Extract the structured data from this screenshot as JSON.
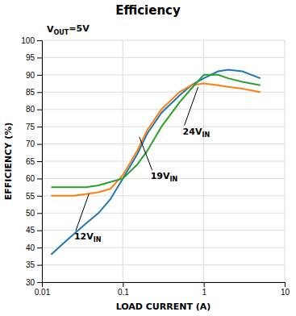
{
  "chart_data": {
    "type": "line",
    "title": "Efficiency",
    "subtitle": {
      "text": "V",
      "subscript": "OUT",
      "suffix": "=5V"
    },
    "xlabel": "LOAD CURRENT (A)",
    "ylabel": "EFFICIENCY (%)",
    "log": "x",
    "x": [
      0.013,
      0.018,
      0.025,
      0.035,
      0.05,
      0.07,
      0.1,
      0.15,
      0.2,
      0.3,
      0.5,
      0.7,
      1.0,
      1.5,
      2.0,
      3.0,
      5.0
    ],
    "series": [
      {
        "values": [
          38,
          41,
          44,
          47,
          50,
          54,
          60,
          67,
          73,
          79,
          84,
          87,
          89,
          91,
          91.5,
          91,
          89
        ]
      },
      {
        "values": [
          55,
          55,
          55,
          55.5,
          56,
          57,
          61,
          68,
          74,
          80,
          85,
          87,
          87.5,
          87,
          86.5,
          86,
          85
        ]
      },
      {
        "values": [
          57.5,
          57.5,
          57.5,
          57.5,
          58,
          59,
          60,
          64,
          68,
          75,
          82,
          86,
          90,
          90,
          89,
          88,
          87
        ]
      }
    ],
    "xlim": [
      0.01,
      10
    ],
    "ylim": [
      30,
      100
    ],
    "xticks": [
      0.01,
      0.1,
      1,
      10
    ],
    "yticks": [
      30,
      35,
      40,
      45,
      50,
      55,
      60,
      65,
      70,
      75,
      80,
      85,
      90,
      95,
      100
    ],
    "grid": true,
    "annotations": [
      {
        "text": "24V",
        "subscript": "IN",
        "x": 0.55,
        "y": 73.5,
        "arrow_x": 0.85,
        "arrow_y": 86.5
      },
      {
        "text": "19V",
        "subscript": "IN",
        "x": 0.22,
        "y": 60.5,
        "arrow_x": 0.16,
        "arrow_y": 72.0
      },
      {
        "text": "12V",
        "subscript": "IN",
        "x": 0.025,
        "y": 43.0,
        "arrow_x": 0.038,
        "arrow_y": 55.5
      }
    ]
  }
}
